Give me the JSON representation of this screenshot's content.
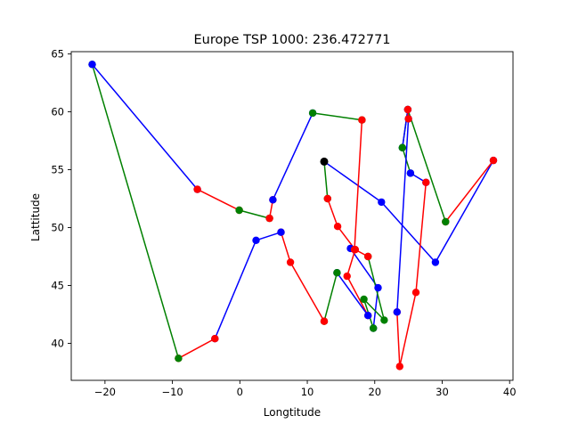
{
  "chart_data": {
    "type": "line",
    "title": "Europe TSP 1000: 236.472771",
    "xlabel": "Longtitude",
    "ylabel": "Lattitude",
    "xlim": [
      -25,
      40.5
    ],
    "ylim": [
      36.8,
      65.2
    ],
    "xticks": [
      -20,
      -10,
      0,
      10,
      20,
      30,
      40
    ],
    "yticks": [
      40,
      45,
      50,
      55,
      60,
      65
    ],
    "grid": false,
    "legend": "none",
    "colors": {
      "route_a": "#0000ff",
      "route_b": "#ff0000",
      "route_c": "#008000",
      "start": "#000000"
    },
    "start": {
      "x": 12.5,
      "y": 55.7
    },
    "series": [
      {
        "color": "#0000ff",
        "points": [
          [
            12.5,
            55.7
          ],
          [
            21.0,
            52.2
          ],
          [
            29.0,
            47.0
          ],
          [
            37.6,
            55.8
          ]
        ]
      },
      {
        "color": "#ff0000",
        "points": [
          [
            37.6,
            55.8
          ],
          [
            30.5,
            50.5
          ]
        ]
      },
      {
        "color": "#008000",
        "points": [
          [
            30.5,
            50.5
          ],
          [
            24.9,
            60.2
          ],
          [
            24.1,
            56.9
          ]
        ]
      },
      {
        "color": "#0000ff",
        "points": [
          [
            24.1,
            56.9
          ],
          [
            24.9,
            60.2
          ]
        ]
      },
      {
        "color": "#008000",
        "points": [
          [
            24.1,
            56.9
          ],
          [
            25.3,
            54.7
          ]
        ]
      },
      {
        "color": "#0000ff",
        "points": [
          [
            25.3,
            54.7
          ],
          [
            27.6,
            53.9
          ]
        ]
      },
      {
        "color": "#ff0000",
        "points": [
          [
            27.6,
            53.9
          ],
          [
            26.1,
            44.4
          ],
          [
            23.7,
            38.0
          ],
          [
            23.3,
            42.7
          ]
        ]
      },
      {
        "color": "#0000ff",
        "points": [
          [
            23.3,
            42.7
          ],
          [
            25.0,
            59.4
          ]
        ]
      },
      {
        "color": "#ff0000",
        "points": [
          [
            24.9,
            60.2
          ],
          [
            25.0,
            59.4
          ]
        ]
      },
      {
        "color": "#008000",
        "points": [
          [
            13.0,
            52.5
          ],
          [
            12.5,
            55.7
          ]
        ]
      },
      {
        "color": "#ff0000",
        "points": [
          [
            13.0,
            52.5
          ],
          [
            14.5,
            50.1
          ],
          [
            17.1,
            48.1
          ]
        ]
      },
      {
        "color": "#0000ff",
        "points": [
          [
            16.4,
            48.2
          ],
          [
            20.5,
            44.8
          ],
          [
            19.8,
            41.3
          ]
        ]
      },
      {
        "color": "#008000",
        "points": [
          [
            19.8,
            41.3
          ],
          [
            18.4,
            43.8
          ],
          [
            21.4,
            42.0
          ],
          [
            19.0,
            47.5
          ]
        ]
      },
      {
        "color": "#ff0000",
        "points": [
          [
            19.0,
            47.5
          ],
          [
            17.1,
            48.1
          ],
          [
            15.9,
            45.8
          ],
          [
            19.0,
            42.4
          ]
        ]
      },
      {
        "color": "#0000ff",
        "points": [
          [
            19.0,
            42.4
          ],
          [
            14.4,
            46.1
          ]
        ]
      },
      {
        "color": "#008000",
        "points": [
          [
            14.4,
            46.1
          ],
          [
            12.5,
            41.9
          ]
        ]
      },
      {
        "color": "#ff0000",
        "points": [
          [
            12.5,
            41.9
          ],
          [
            7.5,
            47.0
          ],
          [
            6.1,
            49.6
          ]
        ]
      },
      {
        "color": "#0000ff",
        "points": [
          [
            6.1,
            49.6
          ],
          [
            2.4,
            48.9
          ],
          [
            -3.7,
            40.4
          ]
        ]
      },
      {
        "color": "#ff0000",
        "points": [
          [
            -3.7,
            40.4
          ],
          [
            -9.1,
            38.7
          ]
        ]
      },
      {
        "color": "#008000",
        "points": [
          [
            -9.1,
            38.7
          ],
          [
            -21.9,
            64.1
          ]
        ]
      },
      {
        "color": "#0000ff",
        "points": [
          [
            -21.9,
            64.1
          ],
          [
            -6.3,
            53.3
          ]
        ]
      },
      {
        "color": "#ff0000",
        "points": [
          [
            -6.3,
            53.3
          ],
          [
            -0.1,
            51.5
          ]
        ]
      },
      {
        "color": "#008000",
        "points": [
          [
            -0.1,
            51.5
          ],
          [
            4.4,
            50.8
          ]
        ]
      },
      {
        "color": "#ff0000",
        "points": [
          [
            4.4,
            50.8
          ],
          [
            4.9,
            52.4
          ]
        ]
      },
      {
        "color": "#0000ff",
        "points": [
          [
            4.9,
            52.4
          ],
          [
            10.8,
            59.9
          ]
        ]
      },
      {
        "color": "#008000",
        "points": [
          [
            10.8,
            59.9
          ],
          [
            18.1,
            59.3
          ]
        ]
      },
      {
        "color": "#ff0000",
        "points": [
          [
            18.1,
            59.3
          ],
          [
            17.0,
            48.1
          ]
        ]
      }
    ]
  }
}
